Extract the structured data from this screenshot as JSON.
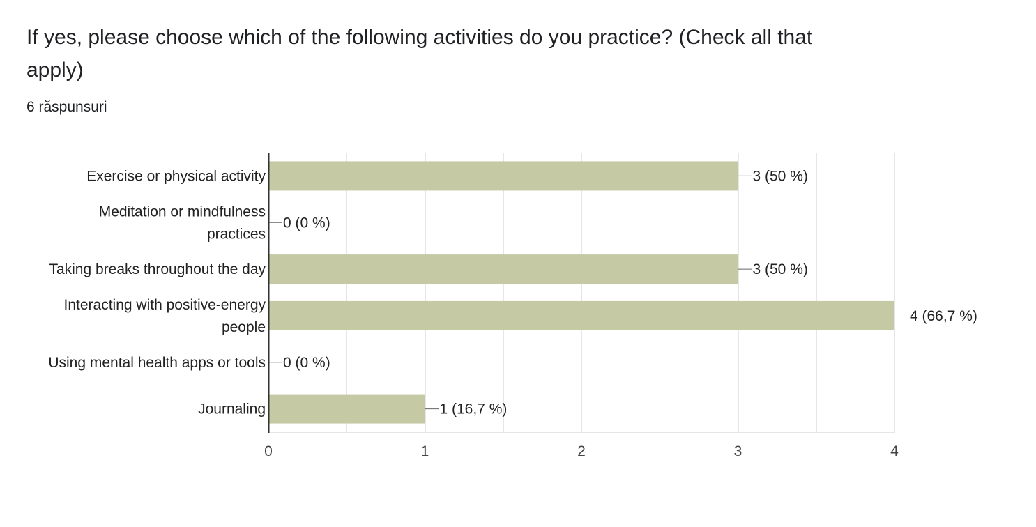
{
  "question": {
    "title": "If yes, please choose which of the following activities do you practice?  (Check all that apply)",
    "responses": "6 răspunsuri"
  },
  "colors": {
    "bar": "#c5caa5",
    "grid": "#e6e6e6",
    "axis": "#333333",
    "text": "#222222",
    "tick_text": "#444444"
  },
  "chart_data": {
    "type": "bar",
    "orientation": "horizontal",
    "categories": [
      [
        "Exercise or physical activity"
      ],
      [
        "Meditation or mindfulness",
        "practices"
      ],
      [
        "Taking breaks throughout the day"
      ],
      [
        "Interacting with positive-energy",
        "people"
      ],
      [
        "Using mental health apps or tools"
      ],
      [
        "Journaling"
      ]
    ],
    "values": [
      3,
      0,
      3,
      4,
      0,
      1
    ],
    "data_labels": [
      "3 (50 %)",
      "0 (0 %)",
      "3 (50 %)",
      "4 (66,7 %)",
      "0 (0 %)",
      "1 (16,7 %)"
    ],
    "xlim": [
      0,
      4
    ],
    "xticks": [
      "0",
      "1",
      "2",
      "3",
      "4"
    ],
    "minor_gridlines": true,
    "legend": "none"
  }
}
